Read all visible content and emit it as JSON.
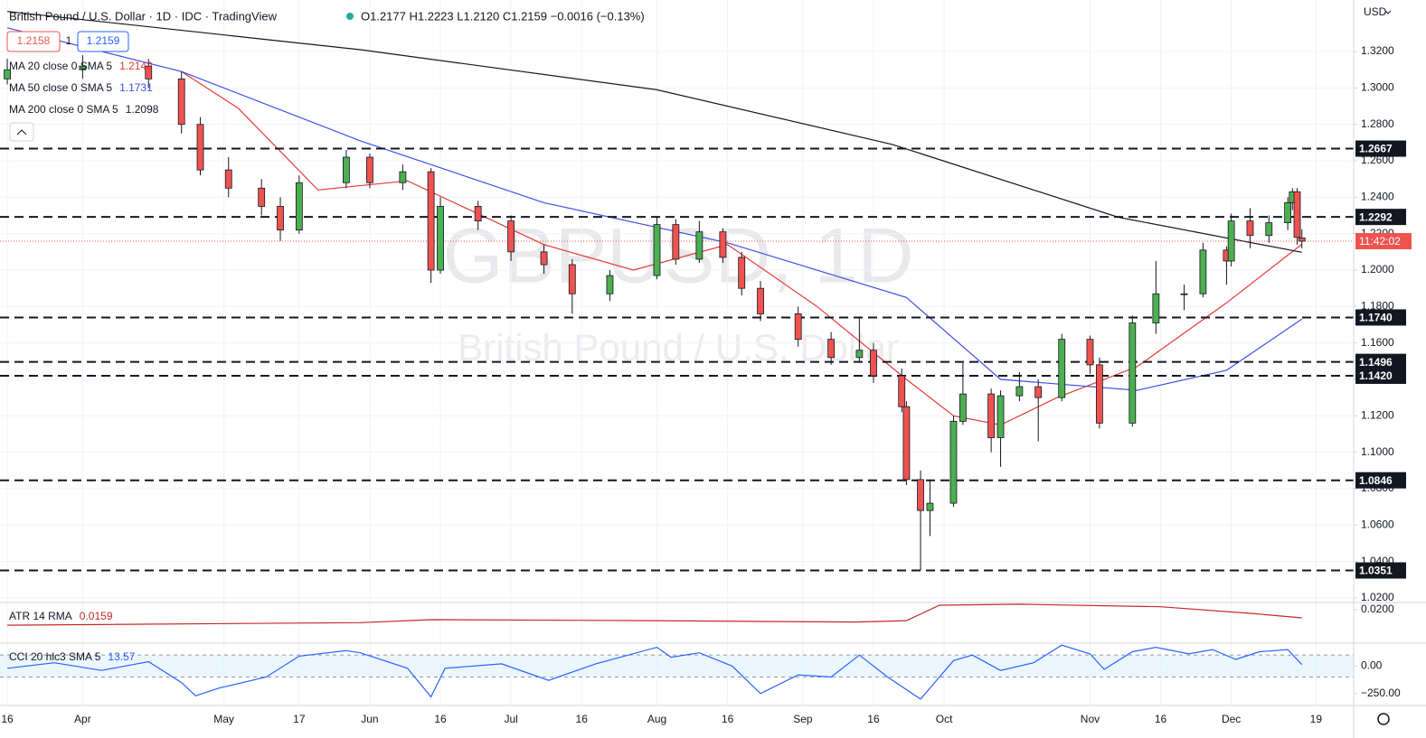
{
  "header": {
    "symbol": "British Pound / U.S. Dollar · 1D · IDC · TradingView",
    "ohlc": "O1.2177 H1.2223 L1.2120 C1.2159 −0.0016 (−0.13%)",
    "bid": "1.2158",
    "spread": "1",
    "ask": "1.2159",
    "currency": "USD"
  },
  "legend": [
    {
      "name": "MA 20 close 0 SMA 5",
      "value": "1.2142",
      "color": "#e53935"
    },
    {
      "name": "MA 50 close 0 SMA 5",
      "value": "1.1731",
      "color": "#3f51e5"
    },
    {
      "name": "MA 200 close 0 SMA 5",
      "value": "1.2098",
      "color": "#131722"
    }
  ],
  "watermark": {
    "ticker": "GBPUSD, 1D",
    "description": "British Pound / U.S. Dollar"
  },
  "chart_data": [
    {
      "type": "candlestick",
      "x": [
        75,
        91,
        105,
        112,
        116,
        122,
        129,
        133,
        137,
        147,
        152,
        159,
        165,
        167,
        175,
        182,
        189,
        195,
        203,
        213,
        217,
        222,
        227,
        231,
        235,
        243,
        250,
        256,
        259,
        265,
        266,
        269,
        271,
        276,
        278,
        284,
        286,
        290,
        294,
        299,
        305,
        307,
        314,
        319,
        325,
        329,
        334,
        335,
        339,
        343,
        347,
        348,
        349,
        350
      ],
      "open": [
        1.305,
        1.31,
        1.312,
        1.305,
        1.28,
        1.255,
        1.245,
        1.235,
        1.222,
        1.248,
        1.262,
        1.248,
        1.254,
        1.2,
        1.235,
        1.227,
        1.21,
        1.203,
        1.187,
        1.197,
        1.225,
        1.206,
        1.221,
        1.207,
        1.19,
        1.176,
        1.162,
        1.152,
        1.156,
        1.142,
        1.125,
        1.085,
        1.068,
        1.072,
        1.117,
        1.132,
        1.108,
        1.131,
        1.136,
        1.13,
        1.162,
        1.148,
        1.116,
        1.171,
        1.187,
        1.187,
        1.211,
        1.205,
        1.227,
        1.219,
        1.226,
        1.237,
        1.243,
        1.2177
      ],
      "high": [
        1.316,
        1.318,
        1.316,
        1.309,
        1.284,
        1.262,
        1.25,
        1.24,
        1.252,
        1.266,
        1.264,
        1.258,
        1.256,
        1.24,
        1.238,
        1.23,
        1.214,
        1.206,
        1.2,
        1.229,
        1.228,
        1.227,
        1.223,
        1.21,
        1.194,
        1.18,
        1.166,
        1.174,
        1.16,
        1.146,
        1.128,
        1.09,
        1.085,
        1.12,
        1.149,
        1.135,
        1.134,
        1.144,
        1.14,
        1.165,
        1.164,
        1.152,
        1.175,
        1.205,
        1.192,
        1.215,
        1.213,
        1.231,
        1.234,
        1.23,
        1.24,
        1.245,
        1.245,
        1.2223
      ],
      "low": [
        1.302,
        1.305,
        1.3,
        1.275,
        1.252,
        1.24,
        1.23,
        1.216,
        1.22,
        1.245,
        1.245,
        1.244,
        1.193,
        1.198,
        1.222,
        1.205,
        1.198,
        1.176,
        1.183,
        1.195,
        1.203,
        1.204,
        1.204,
        1.186,
        1.172,
        1.158,
        1.148,
        1.15,
        1.138,
        1.122,
        1.082,
        1.0351,
        1.054,
        1.07,
        1.115,
        1.1,
        1.092,
        1.128,
        1.106,
        1.128,
        1.143,
        1.113,
        1.114,
        1.165,
        1.178,
        1.185,
        1.192,
        1.202,
        1.212,
        1.215,
        1.222,
        1.233,
        1.214,
        1.212
      ],
      "close": [
        1.31,
        1.312,
        1.305,
        1.28,
        1.255,
        1.245,
        1.235,
        1.222,
        1.248,
        1.262,
        1.248,
        1.254,
        1.2,
        1.235,
        1.227,
        1.21,
        1.203,
        1.187,
        1.197,
        1.225,
        1.206,
        1.221,
        1.207,
        1.19,
        1.176,
        1.162,
        1.152,
        1.156,
        1.142,
        1.125,
        1.085,
        1.068,
        1.072,
        1.117,
        1.132,
        1.108,
        1.131,
        1.136,
        1.13,
        1.162,
        1.148,
        1.116,
        1.171,
        1.187,
        1.187,
        1.211,
        1.205,
        1.227,
        1.219,
        1.226,
        1.237,
        1.243,
        1.218,
        1.2159
      ],
      "up_color": "#4caf50",
      "down_color": "#ef5350",
      "series": [
        {
          "name": "MA 20",
          "color": "#e53935",
          "x": [
            112,
            124,
            141,
            160,
            189,
            208,
            228,
            247,
            266,
            276,
            286,
            298,
            315,
            334,
            350
          ],
          "values": [
            1.309,
            1.289,
            1.244,
            1.249,
            1.214,
            1.2,
            1.214,
            1.18,
            1.14,
            1.12,
            1.115,
            1.13,
            1.147,
            1.182,
            1.2142
          ]
        },
        {
          "name": "MA 50",
          "color": "#3f51e5",
          "x": [
            75,
            112,
            150,
            189,
            228,
            266,
            286,
            315,
            334,
            350
          ],
          "values": [
            1.333,
            1.309,
            1.271,
            1.237,
            1.215,
            1.185,
            1.14,
            1.134,
            1.145,
            1.1731
          ]
        },
        {
          "name": "MA 200",
          "color": "#131722",
          "x": [
            75,
            150,
            213,
            263,
            311,
            350
          ],
          "values": [
            1.342,
            1.321,
            1.299,
            1.269,
            1.229,
            1.2098
          ]
        }
      ],
      "levels": [
        {
          "value": 1.2667,
          "label": "1.2667"
        },
        {
          "value": 1.2292,
          "label": "1.2292"
        },
        {
          "value": 1.174,
          "label": "1.1740"
        },
        {
          "value": 1.1496,
          "label": "1.1496"
        },
        {
          "value": 1.142,
          "label": "1.1420"
        },
        {
          "value": 1.0846,
          "label": "1.0846"
        },
        {
          "value": 1.0351,
          "label": "1.0351"
        }
      ],
      "last_price": 1.2159,
      "countdown": "11:42:02",
      "xlim": [
        73.45,
        361
      ],
      "ylim": [
        1.0175,
        1.3483
      ],
      "xticks": [
        {
          "value": 75,
          "label": "16"
        },
        {
          "value": 91,
          "label": "Apr"
        },
        {
          "value": 121,
          "label": "May"
        },
        {
          "value": 137,
          "label": "17"
        },
        {
          "value": 152,
          "label": "Jun"
        },
        {
          "value": 167,
          "label": "16"
        },
        {
          "value": 182,
          "label": "Jul"
        },
        {
          "value": 197,
          "label": "16"
        },
        {
          "value": 213,
          "label": "Aug"
        },
        {
          "value": 228,
          "label": "16"
        },
        {
          "value": 244,
          "label": "Sep"
        },
        {
          "value": 259,
          "label": "16"
        },
        {
          "value": 274,
          "label": "Oct"
        },
        {
          "value": 305,
          "label": "Nov"
        },
        {
          "value": 320,
          "label": "16"
        },
        {
          "value": 335,
          "label": "Dec"
        },
        {
          "value": 353,
          "label": "19"
        }
      ],
      "yticks": [
        {
          "value": 1.32,
          "label": "1.3200"
        },
        {
          "value": 1.3,
          "label": "1.3000"
        },
        {
          "value": 1.28,
          "label": "1.2800"
        },
        {
          "value": 1.26,
          "label": "1.2600"
        },
        {
          "value": 1.24,
          "label": "1.2400"
        },
        {
          "value": 1.22,
          "label": "1.2200"
        },
        {
          "value": 1.2,
          "label": "1.2000"
        },
        {
          "value": 1.18,
          "label": "1.1800"
        },
        {
          "value": 1.16,
          "label": "1.1600"
        },
        {
          "value": 1.14,
          "label": "1.1400"
        },
        {
          "value": 1.12,
          "label": "1.1200"
        },
        {
          "value": 1.1,
          "label": "1.1000"
        },
        {
          "value": 1.08,
          "label": "1.0800"
        },
        {
          "value": 1.06,
          "label": "1.0600"
        },
        {
          "value": 1.04,
          "label": "1.0400"
        },
        {
          "value": 1.02,
          "label": "1.0200"
        }
      ],
      "grid": true
    },
    {
      "type": "line",
      "title": "ATR 14 RMA",
      "value_label": "0.0159",
      "color": "#c62828",
      "x": [
        75,
        150,
        165,
        213,
        255,
        266,
        273,
        290,
        320,
        340,
        350
      ],
      "values": [
        0.0122,
        0.0135,
        0.015,
        0.0145,
        0.0138,
        0.0145,
        0.0223,
        0.0228,
        0.0215,
        0.018,
        0.0159
      ],
      "xlim": [
        73.45,
        361
      ],
      "ylim": [
        0.00314,
        0.02365
      ],
      "yticks": [
        {
          "value": 0.02,
          "label": "0.0200"
        }
      ]
    },
    {
      "type": "line",
      "title": "CCI 20 hlc3 SMA 5",
      "value_label": "13.57",
      "color": "#2962ff",
      "x": [
        75,
        85,
        95,
        105,
        112,
        115,
        120,
        130,
        137,
        147,
        150,
        160,
        165,
        168,
        180,
        190,
        200,
        213,
        216,
        222,
        229,
        235,
        243,
        250,
        256,
        262,
        269,
        276,
        280,
        286,
        293,
        299,
        305,
        308,
        314,
        319,
        326,
        331,
        336,
        341,
        347,
        350
      ],
      "values": [
        -20,
        30,
        -40,
        40,
        -150,
        -270,
        -200,
        -100,
        90,
        140,
        120,
        -20,
        -280,
        -20,
        20,
        -130,
        20,
        170,
        80,
        120,
        0,
        -250,
        -80,
        -100,
        100,
        -100,
        -300,
        50,
        100,
        -40,
        30,
        190,
        110,
        -30,
        130,
        170,
        110,
        150,
        60,
        130,
        150,
        13.57
      ],
      "band": [
        -100,
        100
      ],
      "xlim": [
        73.45,
        361
      ],
      "ylim": [
        -358,
        208
      ],
      "yticks": [
        {
          "value": 0,
          "label": "0.00"
        },
        {
          "value": -250,
          "label": "−250.00"
        }
      ]
    }
  ]
}
